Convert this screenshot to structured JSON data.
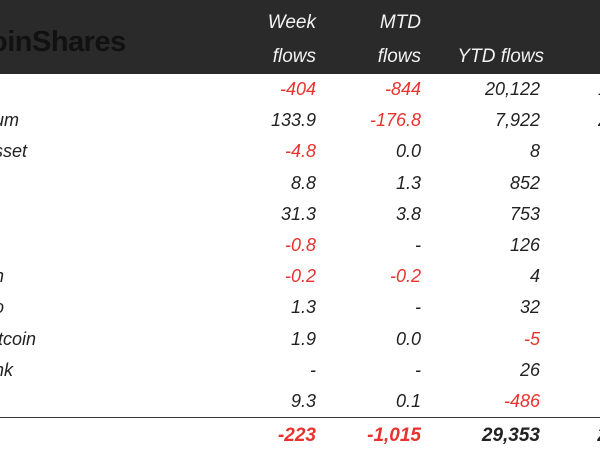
{
  "brand": {
    "logo_text": "oinShares"
  },
  "columns": {
    "week_line1": "Week",
    "week_line2": "flows",
    "mtd_line1": "MTD",
    "mtd_line2": "flows",
    "ytd": "YTD flows"
  },
  "rows": [
    {
      "label": "",
      "week": "-404",
      "mtd": "-844",
      "ytd": "20,122",
      "extra": "1",
      "week_neg": true,
      "mtd_neg": true,
      "ytd_neg": false
    },
    {
      "label": "um",
      "week": "133.9",
      "mtd": "-176.8",
      "ytd": "7,922",
      "extra": "2",
      "week_neg": false,
      "mtd_neg": true,
      "ytd_neg": false
    },
    {
      "label": "sset",
      "week": "-4.8",
      "mtd": "0.0",
      "ytd": "8",
      "extra": "",
      "week_neg": true,
      "mtd_neg": false,
      "ytd_neg": false
    },
    {
      "label": "",
      "week": "8.8",
      "mtd": "1.3",
      "ytd": "852",
      "extra": "",
      "week_neg": false,
      "mtd_neg": false,
      "ytd_neg": false
    },
    {
      "label": "",
      "week": "31.3",
      "mtd": "3.8",
      "ytd": "753",
      "extra": "",
      "week_neg": false,
      "mtd_neg": false,
      "ytd_neg": false
    },
    {
      "label": "",
      "week": "-0.8",
      "mtd": "-",
      "ytd": "126",
      "extra": "",
      "week_neg": true,
      "mtd_neg": false,
      "ytd_neg": false
    },
    {
      "label": "n",
      "week": "-0.2",
      "mtd": "-0.2",
      "ytd": "4",
      "extra": "",
      "week_neg": true,
      "mtd_neg": true,
      "ytd_neg": false
    },
    {
      "label": "o",
      "week": "1.3",
      "mtd": "-",
      "ytd": "32",
      "extra": "",
      "week_neg": false,
      "mtd_neg": false,
      "ytd_neg": false
    },
    {
      "label": "itcoin",
      "week": "1.9",
      "mtd": "0.0",
      "ytd": "-5",
      "extra": "",
      "week_neg": false,
      "mtd_neg": false,
      "ytd_neg": true
    },
    {
      "label": "nk",
      "week": "-",
      "mtd": "-",
      "ytd": "26",
      "extra": "",
      "week_neg": false,
      "mtd_neg": false,
      "ytd_neg": false
    },
    {
      "label": "",
      "week": "9.3",
      "mtd": "0.1",
      "ytd": "-486",
      "extra": "",
      "week_neg": false,
      "mtd_neg": false,
      "ytd_neg": true
    }
  ],
  "total": {
    "week": "-223",
    "mtd": "-1,015",
    "ytd": "29,353",
    "extra": "2"
  },
  "colors": {
    "negative": "#e8322e",
    "header_bg": "#2a2a2a",
    "text": "#222222"
  }
}
